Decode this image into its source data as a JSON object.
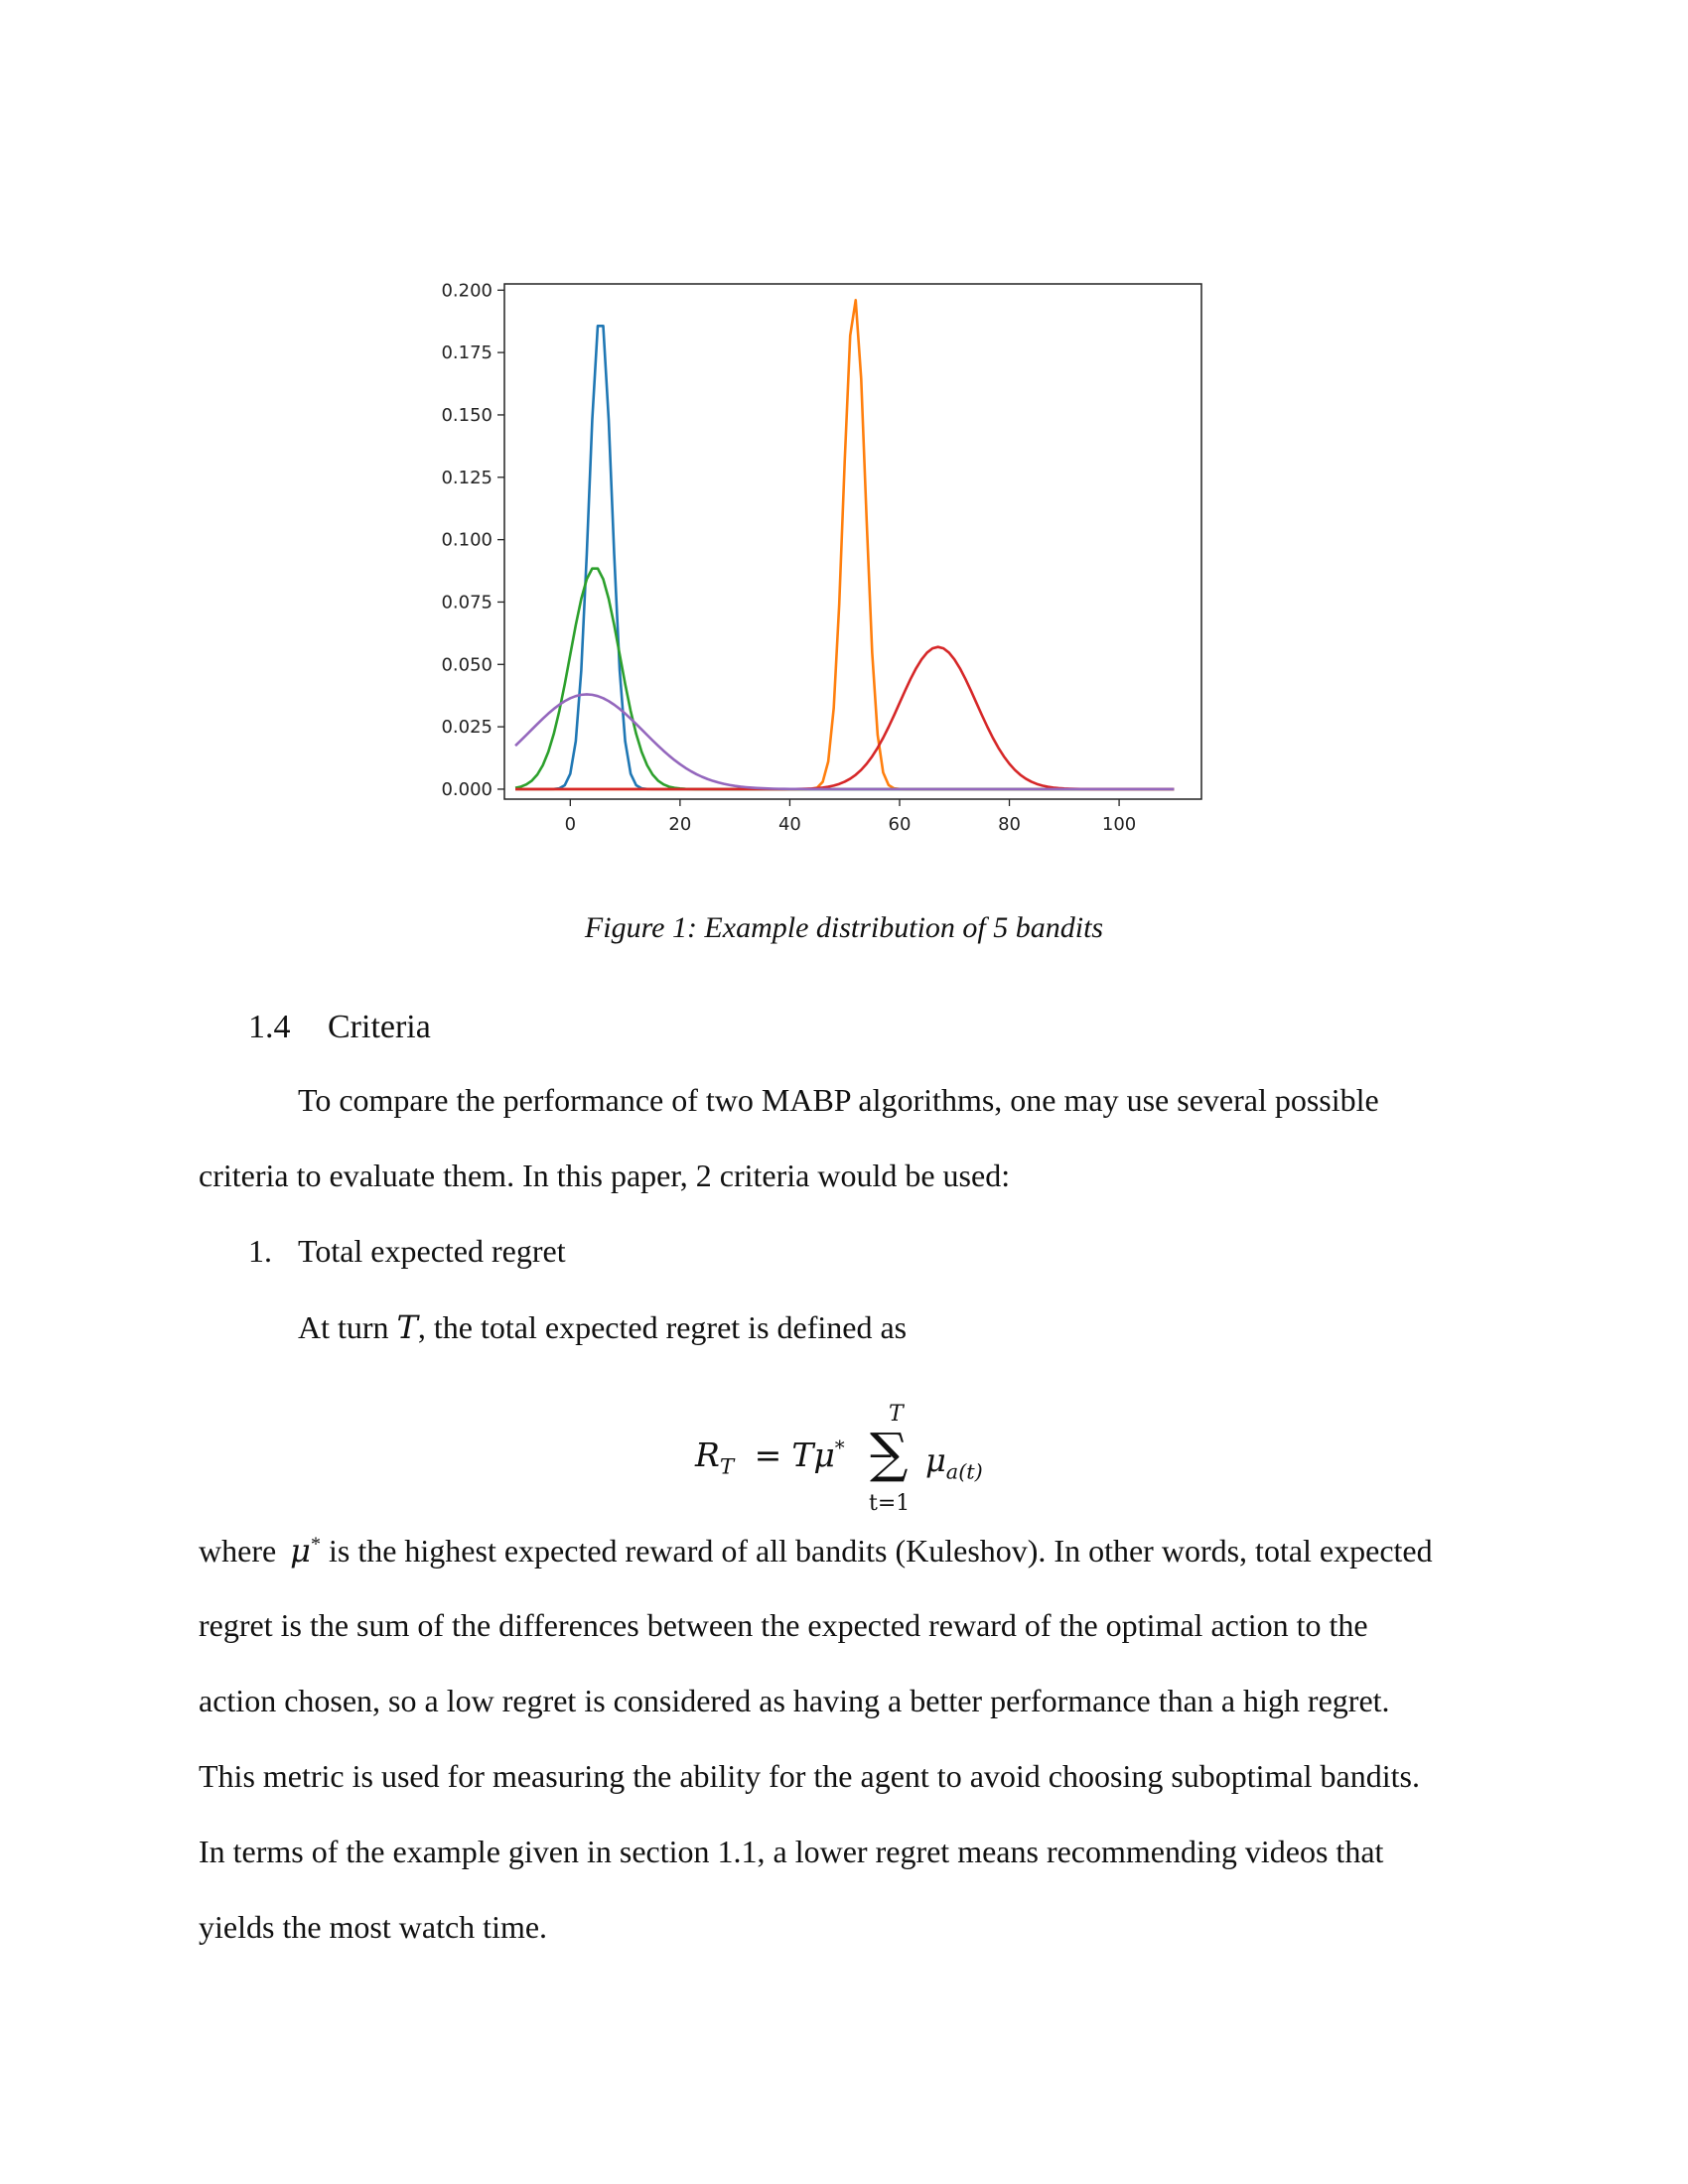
{
  "figure": {
    "caption": "Figure 1: Example distribution of 5 bandits"
  },
  "chart_data": {
    "type": "line",
    "title": "",
    "xlabel": "",
    "ylabel": "",
    "xlim": [
      -12,
      115
    ],
    "ylim": [
      -0.004,
      0.2025
    ],
    "xticks": [
      "0",
      "20",
      "40",
      "60",
      "80",
      "100"
    ],
    "yticks": [
      "0.000",
      "0.025",
      "0.050",
      "0.075",
      "0.100",
      "0.125",
      "0.150",
      "0.175",
      "0.200"
    ],
    "grid": false,
    "series": [
      {
        "color": "#1f77b4",
        "mean": 5.5,
        "sd": 2.1,
        "peak": 0.191,
        "x": [
          -6,
          0,
          2,
          4,
          5.5,
          7,
          9,
          11,
          13,
          110
        ],
        "y": [
          0.0,
          0.006,
          0.053,
          0.148,
          0.191,
          0.173,
          0.07,
          0.012,
          0.0,
          0.0
        ]
      },
      {
        "color": "#ff7f0e",
        "mean": 51.8,
        "sd": 2.0,
        "peak": 0.197,
        "x": [
          -10,
          46,
          48,
          50,
          51.8,
          53,
          55,
          57,
          110
        ],
        "y": [
          0.0,
          0.003,
          0.032,
          0.134,
          0.197,
          0.165,
          0.058,
          0.006,
          0.0
        ]
      },
      {
        "color": "#2ca02c",
        "mean": 4.5,
        "sd": 4.5,
        "peak": 0.089,
        "x": [
          -10,
          -5,
          0,
          4.5,
          10,
          15,
          20,
          110
        ],
        "y": [
          0.001,
          0.011,
          0.054,
          0.089,
          0.042,
          0.006,
          0.0,
          0.0
        ]
      },
      {
        "color": "#d62728",
        "mean": 67,
        "sd": 7.0,
        "peak": 0.057,
        "x": [
          -10,
          45,
          55,
          60,
          67,
          74,
          80,
          90,
          110
        ],
        "y": [
          0.0,
          0.002,
          0.013,
          0.034,
          0.057,
          0.034,
          0.012,
          0.001,
          0.0
        ]
      },
      {
        "color": "#9467bd",
        "mean": 3.0,
        "sd": 10.4,
        "peak": 0.038,
        "x": [
          -10,
          0,
          3,
          10,
          20,
          30,
          40,
          110
        ],
        "y": [
          0.017,
          0.036,
          0.038,
          0.03,
          0.01,
          0.002,
          0.0,
          0.0
        ]
      }
    ]
  },
  "section": {
    "number": "1.4",
    "title": "Criteria"
  },
  "paragraph1": {
    "line1": "To compare the performance of two MABP algorithms, one may use several possible",
    "line2": "criteria to evaluate them. In this paper, 2 criteria would be used:"
  },
  "list": {
    "item1_number": "1.",
    "item1_text": "Total expected regret"
  },
  "definition": {
    "prefix": "At turn ",
    "var": "T",
    "suffix": ", the total expected regret is defined as"
  },
  "equation": {
    "lhs": "R",
    "lhs_sub": "T",
    "equals": "=",
    "tmu": "Tμ",
    "star": "*",
    "minus": "−",
    "sigma": "∑",
    "upper": "T",
    "lower": "t=1",
    "term": "μ",
    "term_sub": "a(t)"
  },
  "paragraph2": {
    "line1_a": "where ",
    "line1_mu": "μ",
    "line1_star": "*",
    "line1_b": " is the highest expected reward of all bandits (Kuleshov). In other words, total expected",
    "line2": "regret is the sum of the differences between the expected reward of the optimal action to the",
    "line3": "action chosen, so a low regret is considered as having a better performance than a high regret.",
    "line4": "This metric is used for measuring the ability for the agent to avoid choosing suboptimal bandits.",
    "line5": "In terms of the example given in section 1.1, a lower regret means recommending videos that",
    "line6": "yields the most watch time."
  }
}
